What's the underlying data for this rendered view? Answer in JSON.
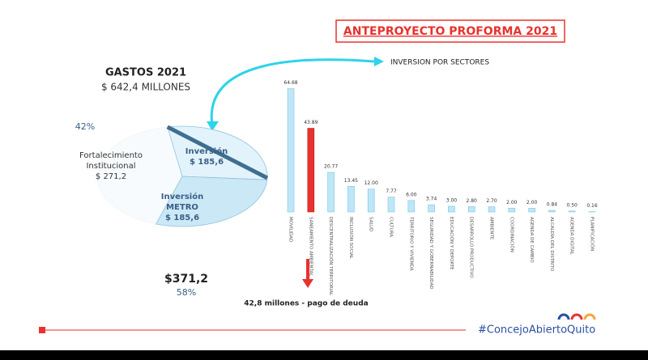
{
  "slide": {
    "title": "ANTEPROYECTO PROFORMA 2021",
    "hashtag": "#ConcejoAbiertoQuito"
  },
  "chart_data": [
    {
      "type": "pie",
      "title": "GASTOS 2021",
      "subtitle": "$ 642,4 MILLONES",
      "categories": [
        "Fortalecimiento Institucional",
        "Inversión",
        "Inversión METRO"
      ],
      "values": [
        271.2,
        185.6,
        185.6
      ],
      "value_labels": [
        "$ 271,2",
        "$ 185,6",
        "$ 185,6"
      ],
      "colors": [
        "#f7fbfd",
        "#e3f3fb",
        "#cbe8f6"
      ],
      "annotations": [
        "42%",
        "$371,2",
        "58%"
      ]
    },
    {
      "type": "bar",
      "title": "INVERSION POR SECTORES",
      "categories": [
        "MOVILIDAD",
        "SANEAMIENTO AMBIENTAL",
        "DESCENTRALIZACIÓN TERRITORIAL",
        "INCLUSIÓN SOCIAL",
        "SALUD",
        "CULTURA",
        "TERRITORIO Y VIVIENDA",
        "SEGURIDAD Y GOBERNABILIDAD",
        "EDUCACIÓN Y DEPORTE",
        "DESARROLLO PRODUCTIVO",
        "AMBIENTE",
        "COORDINACIÓN",
        "AGENDA DE CAMBIO",
        "ALCALDÍA DEL DISTRITO",
        "AGENDA DIGITAL",
        "PLANIFICACIÓN"
      ],
      "values": [
        64.68,
        43.89,
        20.77,
        13.45,
        12.0,
        7.77,
        6.0,
        3.74,
        3.0,
        2.8,
        2.7,
        2.0,
        2.0,
        0.84,
        0.5,
        0.16
      ],
      "value_labels": [
        "64.68",
        "43.89",
        "20.77",
        "13.45",
        "12.00",
        "7.77",
        "6.00",
        "3.74",
        "3.00",
        "2.80",
        "2.70",
        "2.00",
        "2.00",
        "0.84",
        "0.50",
        "0.16"
      ],
      "colors": [
        "#bfe6f7",
        "#e8322f",
        "#bfe6f7",
        "#bfe6f7",
        "#bfe6f7",
        "#bfe6f7",
        "#bfe6f7",
        "#bfe6f7",
        "#bfe6f7",
        "#bfe6f7",
        "#bfe6f7",
        "#bfe6f7",
        "#bfe6f7",
        "#bfe6f7",
        "#bfe6f7",
        "#bfe6f7"
      ],
      "ylim": [
        0,
        70
      ],
      "annotation": "42,8  millones - pago de deuda"
    }
  ]
}
